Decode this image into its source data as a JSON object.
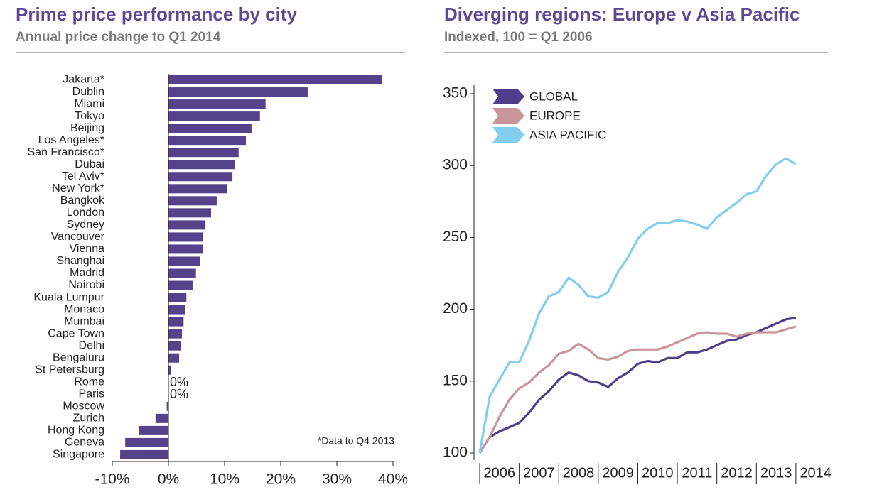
{
  "chart_data": [
    {
      "type": "hbar",
      "title": "Prime price performance by city",
      "subtitle": "Annual price change to Q1 2014",
      "categories": [
        "Jakarta*",
        "Dublin",
        "Miami",
        "Tokyo",
        "Beijing",
        "Los Angeles*",
        "San Francisco*",
        "Dubai",
        "Tel Aviv*",
        "New York*",
        "Bangkok",
        "London",
        "Sydney",
        "Vancouver",
        "Vienna",
        "Shanghai",
        "Madrid",
        "Nairobi",
        "Kuala Lumpur",
        "Monaco",
        "Mumbai",
        "Cape Town",
        "Delhi",
        "Bengaluru",
        "St Petersburg",
        "Rome",
        "Paris",
        "Moscow",
        "Zurich",
        "Hong Kong",
        "Geneva",
        "Singapore"
      ],
      "values": [
        38.0,
        24.8,
        17.3,
        16.3,
        14.8,
        13.8,
        12.5,
        11.9,
        11.4,
        10.5,
        8.6,
        7.6,
        6.6,
        6.1,
        6.1,
        5.6,
        4.9,
        4.3,
        3.2,
        3.0,
        2.7,
        2.4,
        2.2,
        1.9,
        0.5,
        0,
        0,
        -0.3,
        -2.3,
        -5.2,
        -7.7,
        -8.6
      ],
      "value_labels": [
        null,
        null,
        null,
        null,
        null,
        null,
        null,
        null,
        null,
        null,
        null,
        null,
        null,
        null,
        null,
        null,
        null,
        null,
        null,
        null,
        null,
        null,
        null,
        null,
        null,
        "0%",
        "0%",
        null,
        null,
        null,
        null,
        null
      ],
      "color": "#54428a",
      "xlim": [
        -10,
        40
      ],
      "xticks": [
        {
          "value": -10,
          "label": "-10%"
        },
        {
          "value": 0,
          "label": "0%"
        },
        {
          "value": 10,
          "label": "10%"
        },
        {
          "value": 20,
          "label": "20%"
        },
        {
          "value": 30,
          "label": "30%"
        },
        {
          "value": 40,
          "label": "40%"
        }
      ],
      "annotation": "*Data to Q4 2013",
      "grid": false
    },
    {
      "type": "line",
      "title": "Diverging regions: Europe v Asia Pacific",
      "subtitle": "Indexed, 100 = Q1 2006",
      "x": [
        2006,
        2006.25,
        2006.5,
        2006.75,
        2007,
        2007.25,
        2007.5,
        2007.75,
        2008,
        2008.25,
        2008.5,
        2008.75,
        2009,
        2009.25,
        2009.5,
        2009.75,
        2010,
        2010.25,
        2010.5,
        2010.75,
        2011,
        2011.25,
        2011.5,
        2011.75,
        2012,
        2012.25,
        2012.5,
        2012.75,
        2013,
        2013.25,
        2013.5,
        2013.75,
        2014
      ],
      "series": [
        {
          "name": "GLOBAL",
          "color": "#4f3f8a",
          "values": [
            100,
            111,
            115,
            118,
            121,
            128,
            137,
            143,
            151,
            156,
            154,
            150,
            149,
            146,
            152,
            156,
            162,
            164,
            163,
            166,
            166,
            170,
            170,
            172,
            175,
            178,
            179,
            182,
            184,
            187,
            190,
            193,
            194
          ]
        },
        {
          "name": "EUROPE",
          "color": "#c9959a",
          "values": [
            100,
            111,
            125,
            137,
            145,
            149,
            156,
            161,
            169,
            171,
            176,
            172,
            166,
            165,
            167,
            171,
            172,
            172,
            172,
            174,
            177,
            180,
            183,
            184,
            183,
            183,
            181,
            183,
            184,
            184,
            184,
            186,
            188
          ]
        },
        {
          "name": "ASIA PACIFIC",
          "color": "#82cdf0",
          "values": [
            100,
            139,
            151,
            163,
            163,
            178,
            197,
            209,
            212,
            222,
            217,
            209,
            208,
            212,
            226,
            236,
            249,
            256,
            260,
            260,
            262,
            261,
            259,
            256,
            264,
            269,
            274,
            280,
            282,
            293,
            301,
            305,
            301
          ]
        }
      ],
      "xlim": [
        2006,
        2014.75
      ],
      "xticks": [
        2006,
        2007,
        2008,
        2009,
        2010,
        2011,
        2012,
        2013,
        2014
      ],
      "ylim": [
        100,
        350
      ],
      "yticks": [
        100,
        150,
        200,
        250,
        300,
        350
      ],
      "legend": "top-left",
      "grid": false
    }
  ]
}
